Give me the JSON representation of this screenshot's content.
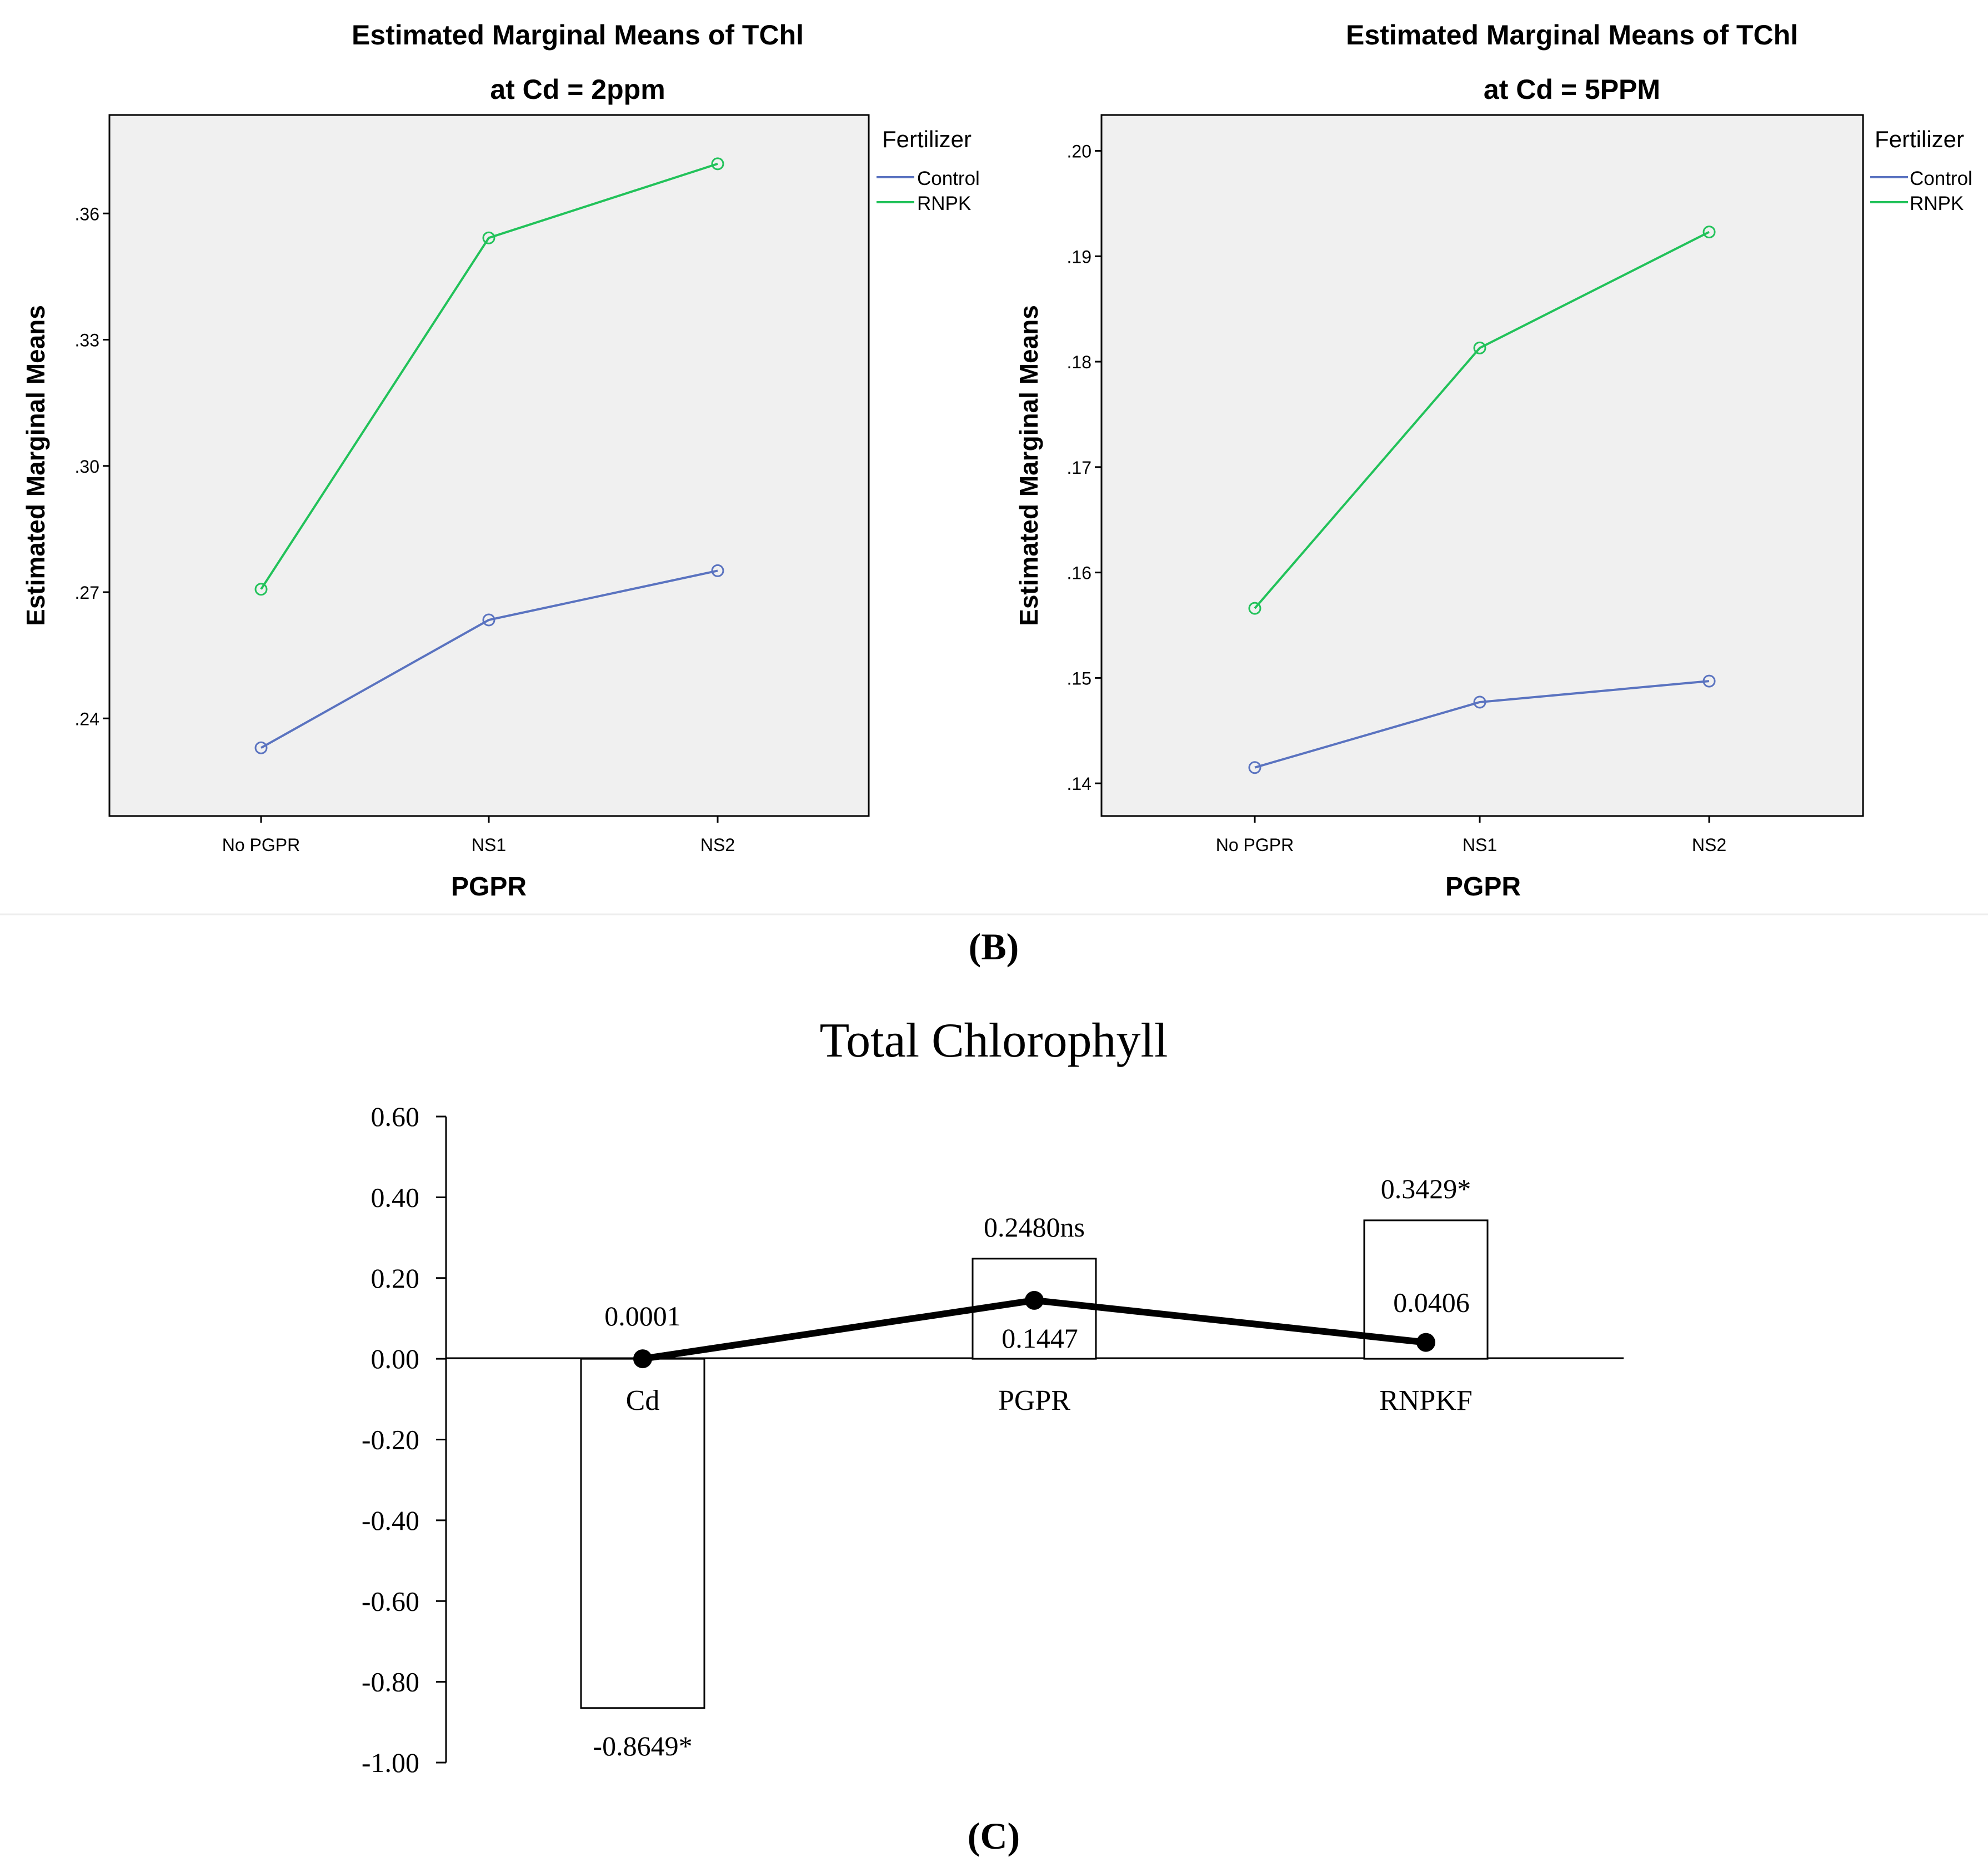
{
  "panel_labels": {
    "b": "(B)",
    "c": "(C)"
  },
  "chart_data": [
    {
      "type": "line",
      "title": "Estimated Marginal Means of TChl",
      "subtitle": "at Cd = 2ppm",
      "xlabel": "PGPR",
      "ylabel": "Estimated Marginal Means",
      "categories": [
        "No PGPR",
        "NS1",
        "NS2"
      ],
      "yticks": [
        ".24",
        ".27",
        ".30",
        ".33",
        ".36"
      ],
      "ytick_values": [
        0.24,
        0.27,
        0.3,
        0.33,
        0.36
      ],
      "ylim": [
        0.2168,
        0.3834
      ],
      "legend_title": "Fertilizer",
      "legend_position": "right",
      "series": [
        {
          "name": "Control",
          "color": "#5a73c0",
          "values": [
            0.233,
            0.2634,
            0.2751
          ]
        },
        {
          "name": "RNPK",
          "color": "#22c25a",
          "values": [
            0.2707,
            0.3542,
            0.3718
          ]
        }
      ]
    },
    {
      "type": "line",
      "title": "Estimated Marginal Means of TChl",
      "subtitle": "at Cd = 5PPM",
      "xlabel": "PGPR",
      "ylabel": "Estimated Marginal Means",
      "categories": [
        "No PGPR",
        "NS1",
        "NS2"
      ],
      "yticks": [
        ".14",
        ".15",
        ".16",
        ".17",
        ".18",
        ".19",
        ".20"
      ],
      "ytick_values": [
        0.14,
        0.15,
        0.16,
        0.17,
        0.18,
        0.19,
        0.2
      ],
      "ylim": [
        0.1369,
        0.2034
      ],
      "legend_title": "Fertilizer",
      "legend_position": "right",
      "series": [
        {
          "name": "Control",
          "color": "#5a73c0",
          "values": [
            0.1415,
            0.1477,
            0.1497
          ]
        },
        {
          "name": "RNPK",
          "color": "#22c25a",
          "values": [
            0.1566,
            0.1813,
            0.1923
          ]
        }
      ]
    },
    {
      "type": "bar",
      "title": "Total Chlorophyll",
      "categories": [
        "Cd",
        "PGPR",
        "RNPKF"
      ],
      "ylim": [
        -1.0,
        0.6
      ],
      "yticks": [
        "0.60",
        "0.40",
        "0.20",
        "0.00",
        "-0.20",
        "-0.40",
        "-0.60",
        "-0.80",
        "-1.00"
      ],
      "ytick_values": [
        0.6,
        0.4,
        0.2,
        0.0,
        -0.2,
        -0.4,
        -0.6,
        -0.8,
        -1.0
      ],
      "series": [
        {
          "name": "bars",
          "values": [
            -0.8649,
            0.248,
            0.3429
          ],
          "labels": [
            "-0.8649*",
            "0.2480ns",
            "0.3429*"
          ]
        },
        {
          "name": "line",
          "values": [
            0.0001,
            0.1447,
            0.0406
          ],
          "labels": [
            "0.0001",
            "0.1447",
            "0.0406"
          ]
        }
      ]
    }
  ]
}
